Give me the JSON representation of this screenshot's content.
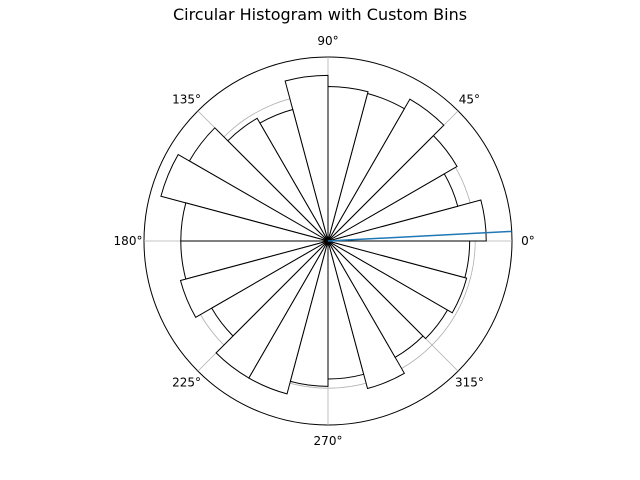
{
  "chart_data": {
    "type": "polar-bar",
    "title": "Circular Histogram with Custom Bins",
    "bins": 24,
    "bin_width_deg": 15,
    "bin_start_deg": [
      0,
      15,
      30,
      45,
      60,
      75,
      90,
      105,
      120,
      135,
      150,
      165,
      180,
      195,
      210,
      225,
      240,
      255,
      270,
      285,
      300,
      315,
      330,
      345
    ],
    "counts": [
      0.86,
      0.73,
      0.81,
      0.89,
      0.83,
      0.84,
      0.9,
      0.74,
      0.77,
      0.87,
      0.94,
      0.8,
      0.8,
      0.83,
      0.73,
      0.86,
      0.86,
      0.79,
      0.75,
      0.83,
      0.73,
      0.75,
      0.78,
      0.77
    ],
    "rmax": 1.0,
    "radial_grid": [
      0.2,
      0.4,
      0.6,
      0.8,
      1.0
    ],
    "angle_ticks": [
      "0°",
      "45°",
      "90°",
      "135°",
      "180°",
      "225°",
      "270°",
      "315°"
    ],
    "line": {
      "from_deg": 0,
      "to_deg": 3,
      "from_r": 0,
      "to_r": 1.0
    },
    "colors": {
      "bar_fill": "#ffffff",
      "bar_edge": "#000000",
      "grid": "#b0b0b0",
      "line": "#1f77b4"
    }
  }
}
